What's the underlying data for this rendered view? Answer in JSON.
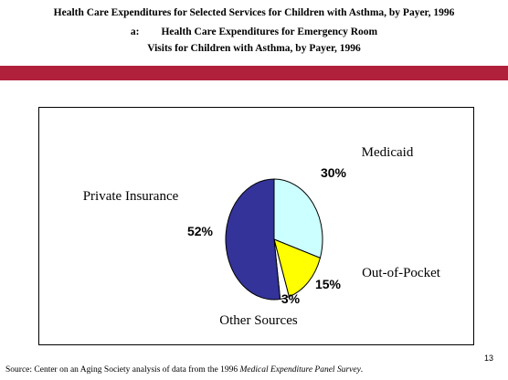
{
  "header": {
    "title": "Health Care Expenditures for Selected Services for Children with Asthma, by Payer, 1996",
    "sub_label": "a:",
    "subtitle_line1": "Health Care Expenditures for Emergency Room",
    "subtitle_line2": "Visits for Children with Asthma, by Payer, 1996"
  },
  "colors": {
    "rule": "#b0203a",
    "medicaid": "#ccffff",
    "out_of_pocket": "#ffff00",
    "other_sources": "#ffffff",
    "private_insurance": "#333399"
  },
  "chart_data": {
    "type": "pie",
    "slices": [
      {
        "label": "Medicaid",
        "value": 30,
        "value_label": "30%",
        "color": "#ccffff"
      },
      {
        "label": "Out-of-Pocket",
        "value": 15,
        "value_label": "15%",
        "color": "#ffff00"
      },
      {
        "label": "Other Sources",
        "value": 3,
        "value_label": "3%",
        "color": "#ffffff"
      },
      {
        "label": "Private Insurance",
        "value": 52,
        "value_label": "52%",
        "color": "#333399"
      }
    ]
  },
  "page_number": "13",
  "source": {
    "prefix": "Source:  Center on an Aging Society analysis of data from the 1996 ",
    "italic": "Medical Expenditure Panel Survey",
    "suffix": "."
  }
}
